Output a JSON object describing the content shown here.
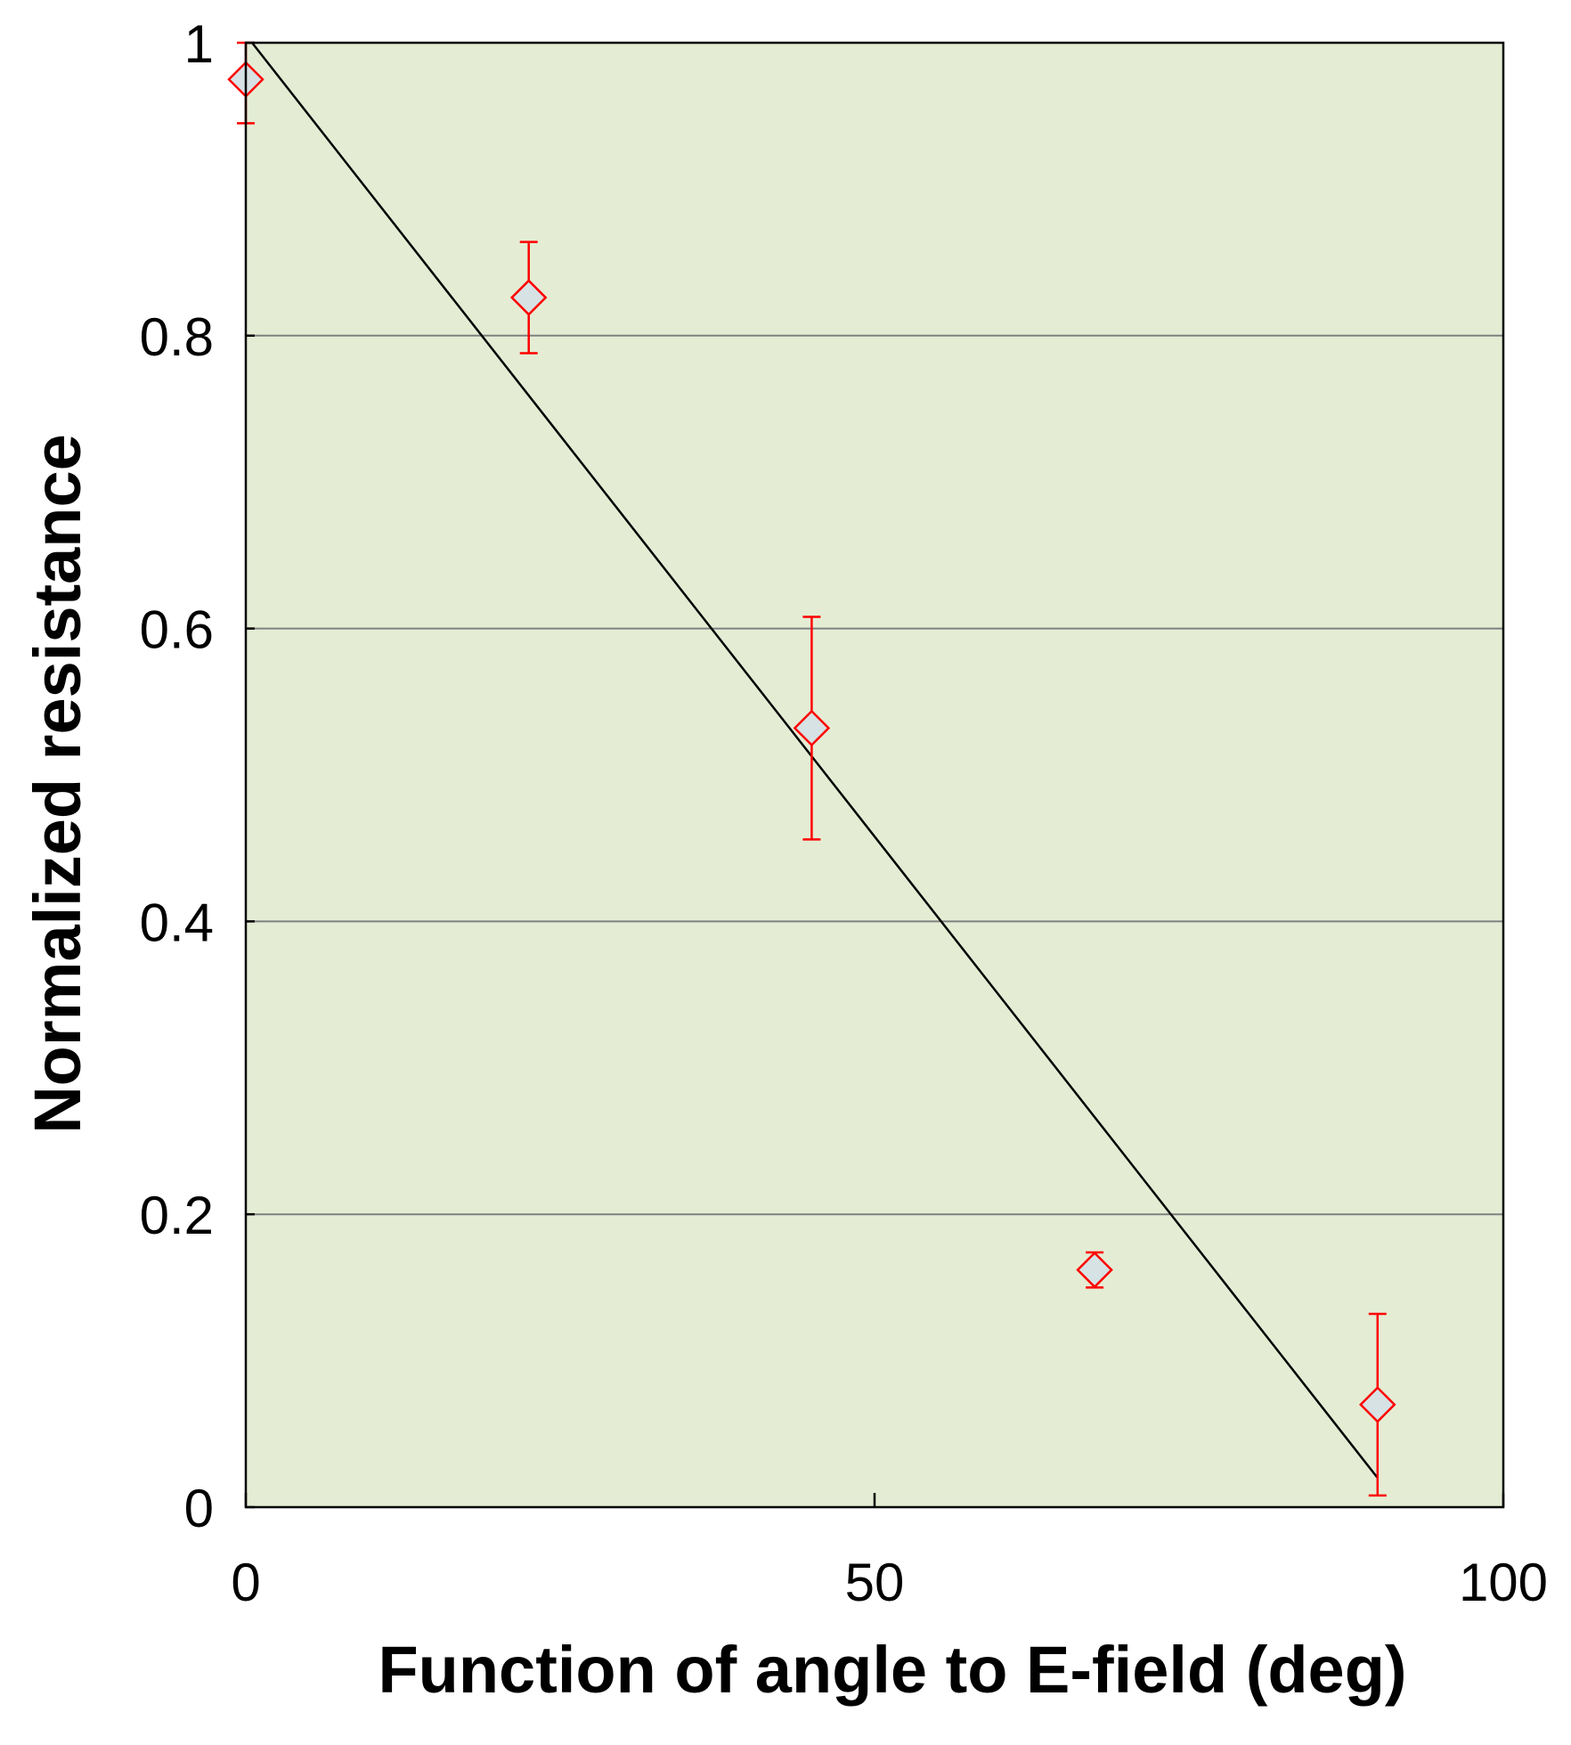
{
  "chart_data": {
    "type": "scatter",
    "title": "",
    "xlabel": "Function of angle to E-field (deg)",
    "ylabel": "Normalized resistance",
    "xlim": [
      0,
      100
    ],
    "ylim": [
      0,
      1
    ],
    "xticks": [
      "0",
      "50",
      "100"
    ],
    "yticks": [
      "0",
      "0.2",
      "0.4",
      "0.6",
      "0.8",
      "1"
    ],
    "xtick_values": [
      0,
      50,
      100
    ],
    "ytick_values": [
      0,
      0.2,
      0.4,
      0.6,
      0.8,
      1
    ],
    "grid": "horizontal",
    "legend": "none",
    "series": [
      {
        "points": [
          {
            "x": 0,
            "y": 0.975,
            "err_low": 0.03,
            "err_high": 0.025
          },
          {
            "x": 22.5,
            "y": 0.826,
            "err_low": 0.038,
            "err_high": 0.038
          },
          {
            "x": 45,
            "y": 0.532,
            "err_low": 0.076,
            "err_high": 0.076
          },
          {
            "x": 67.5,
            "y": 0.162,
            "err_low": 0.012,
            "err_high": 0.012
          },
          {
            "x": 90,
            "y": 0.07,
            "err_low": 0.062,
            "err_high": 0.062
          }
        ]
      }
    ],
    "fit_line": {
      "x": [
        0.5,
        90
      ],
      "y": [
        1.0,
        0.02
      ]
    },
    "colors": {
      "plot_background": "#e4edd4",
      "marker_edge": "#ff0000",
      "marker_fill": "#d6e2e4",
      "error_bar": "#ff0000",
      "fit_line": "#000000",
      "grid": "#808080"
    }
  }
}
